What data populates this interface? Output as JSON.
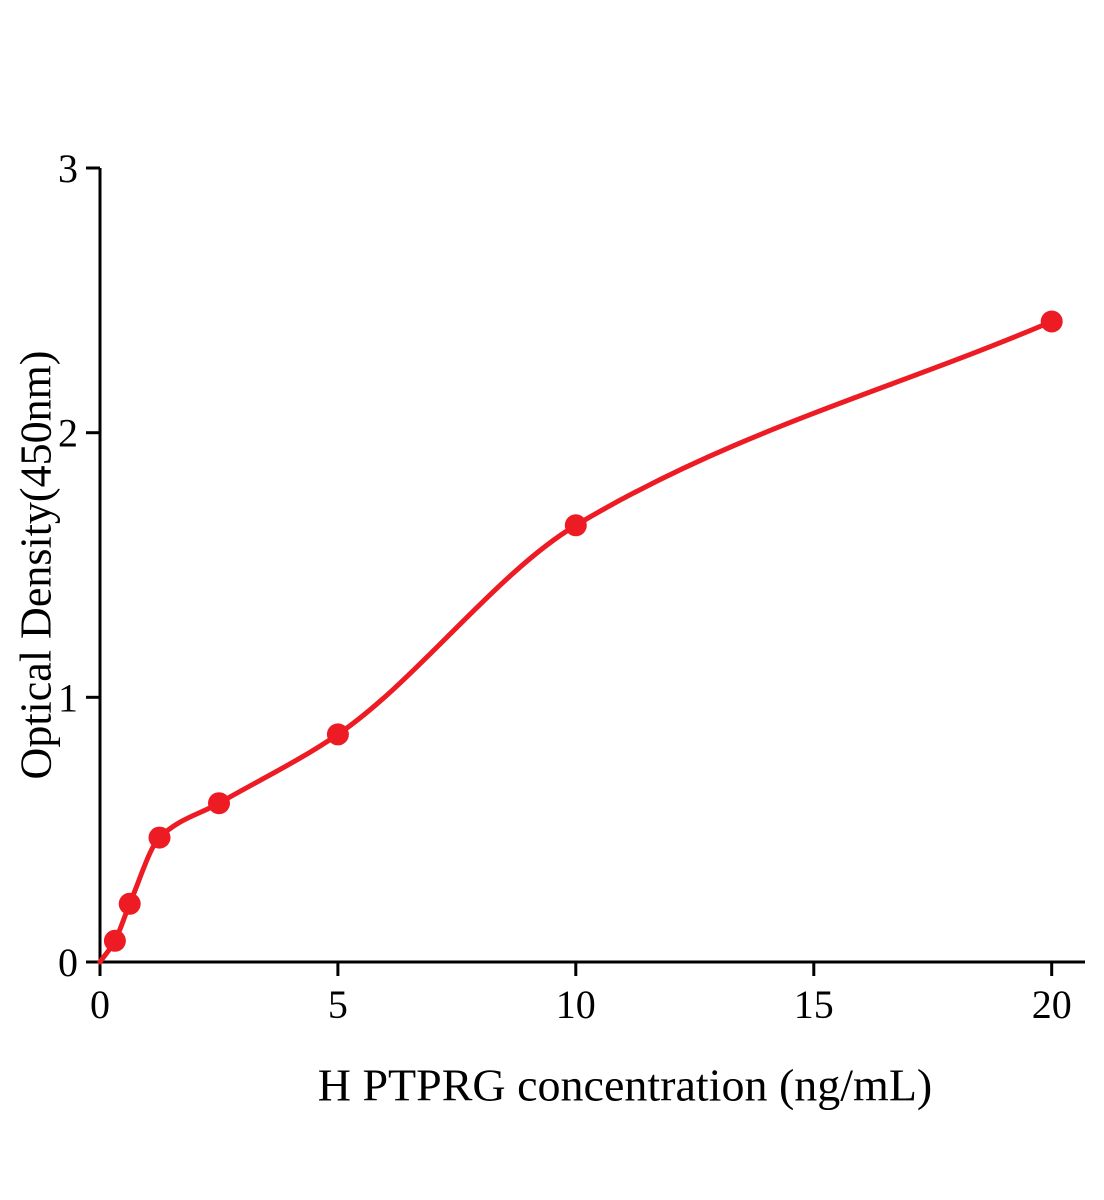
{
  "chart_data": {
    "type": "scatter",
    "title": "",
    "xlabel": "H PTPRG concentration (ng/mL)",
    "ylabel": "Optical Density(450nm)",
    "xlim": [
      0,
      20.7
    ],
    "ylim": [
      0,
      3
    ],
    "x_ticks": [
      0,
      5,
      10,
      15,
      20
    ],
    "y_ticks": [
      0,
      1,
      2,
      3
    ],
    "grid": false,
    "legend_position": "none",
    "curve_start": {
      "x": 0,
      "y": 0
    },
    "points": [
      {
        "x": 0.3125,
        "y": 0.08
      },
      {
        "x": 0.625,
        "y": 0.22
      },
      {
        "x": 1.25,
        "y": 0.47
      },
      {
        "x": 2.5,
        "y": 0.6
      },
      {
        "x": 5,
        "y": 0.86
      },
      {
        "x": 10,
        "y": 1.65
      },
      {
        "x": 20,
        "y": 2.42
      }
    ],
    "marker_color": "#ed1c24",
    "line_color": "#ed1c24",
    "axis_color": "#000000"
  }
}
